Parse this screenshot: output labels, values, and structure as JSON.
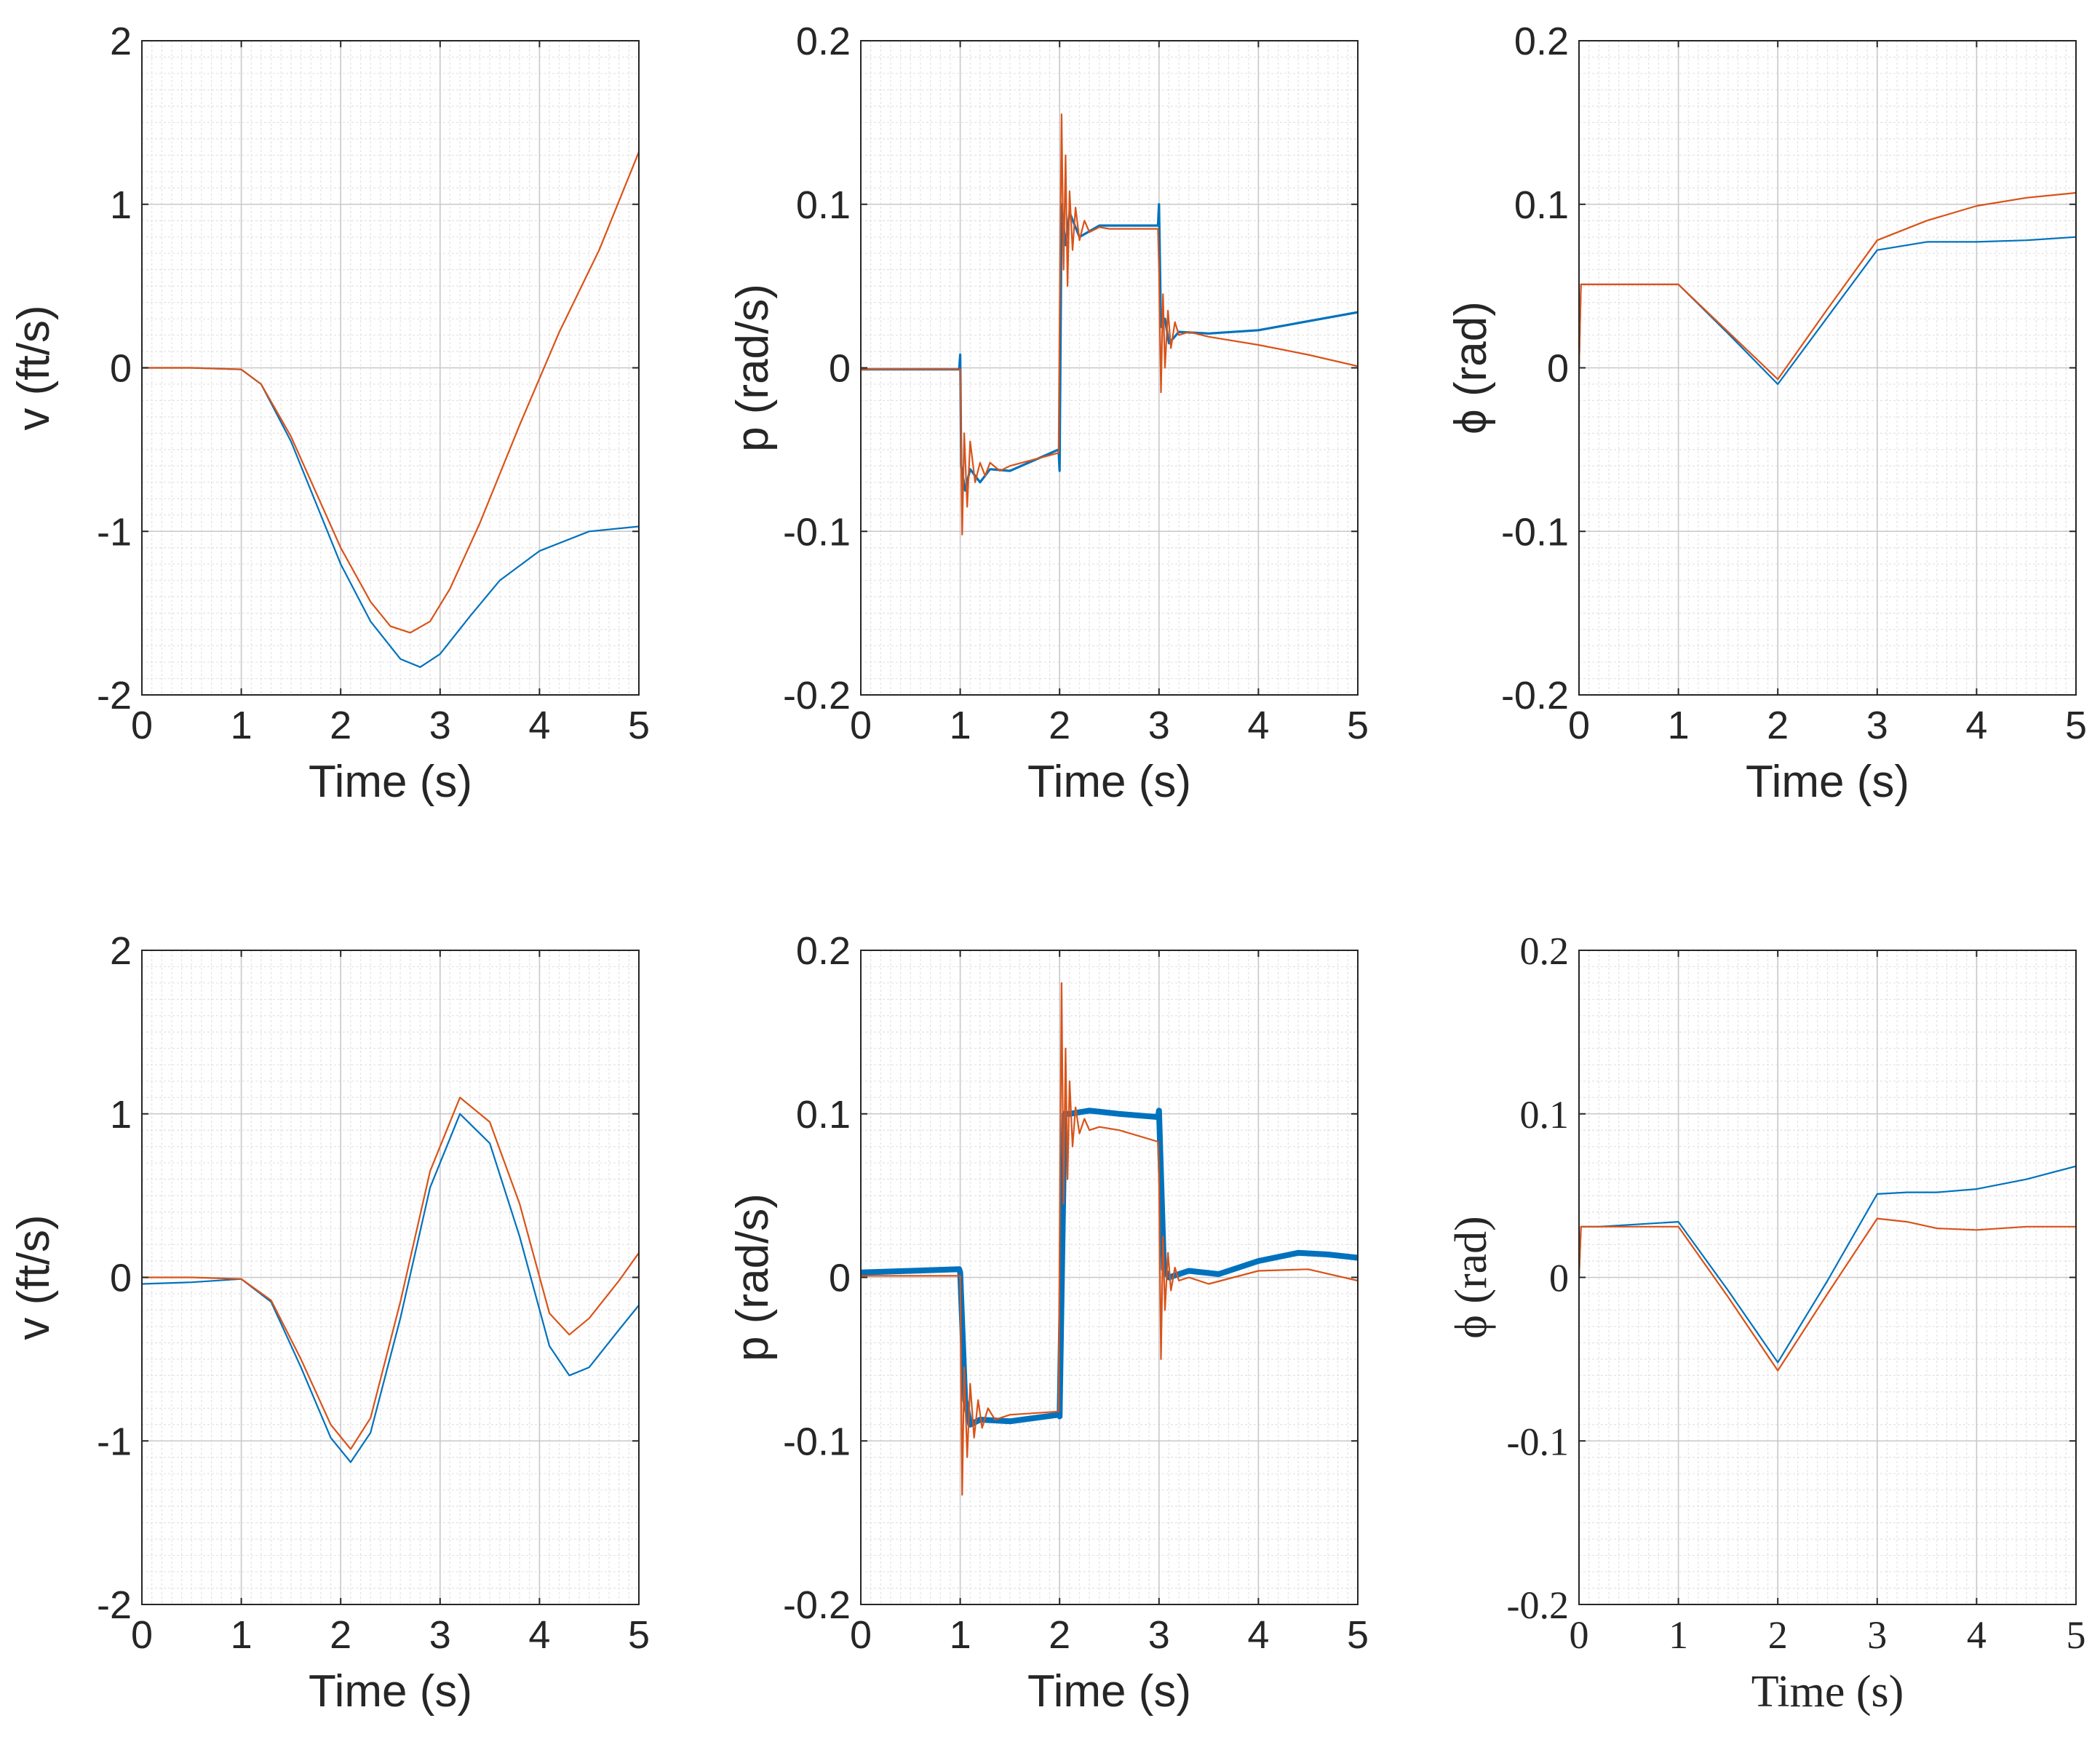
{
  "colors": {
    "series_blue": "#0072BD",
    "series_orange": "#D95319",
    "axis": "#262626",
    "grid_major": "#c8c8c8",
    "grid_minor": "#e3e3e3"
  },
  "chart_data": [
    {
      "id": "v-top",
      "type": "line",
      "font": "sans",
      "xlabel": "Time (s)",
      "ylabel": "v (ft/s)",
      "xlim": [
        0,
        5
      ],
      "ylim": [
        -2,
        2
      ],
      "xticks": [
        0,
        1,
        2,
        3,
        4,
        5
      ],
      "xtick_labels": [
        "0",
        "1",
        "2",
        "3",
        "4",
        "5"
      ],
      "yticks": [
        -2,
        -1,
        0,
        1,
        2
      ],
      "ytick_labels": [
        "-2",
        "-1",
        "0",
        "1",
        "2"
      ],
      "grid": true,
      "minor_grid": true,
      "series": [
        {
          "name": "blue",
          "color": "#0072BD",
          "width": 2.2,
          "x": [
            0,
            0.5,
            1.0,
            1.2,
            1.5,
            2.0,
            2.3,
            2.6,
            2.8,
            3.0,
            3.3,
            3.6,
            4.0,
            4.5,
            5.0
          ],
          "y": [
            0,
            0,
            -0.01,
            -0.1,
            -0.45,
            -1.2,
            -1.55,
            -1.78,
            -1.83,
            -1.75,
            -1.52,
            -1.3,
            -1.12,
            -1.0,
            -0.97
          ]
        },
        {
          "name": "orange",
          "color": "#D95319",
          "width": 2.2,
          "x": [
            0,
            0.5,
            1.0,
            1.2,
            1.5,
            2.0,
            2.3,
            2.5,
            2.7,
            2.9,
            3.1,
            3.4,
            3.8,
            4.2,
            4.6,
            5.0
          ],
          "y": [
            0,
            0,
            -0.01,
            -0.1,
            -0.42,
            -1.1,
            -1.43,
            -1.58,
            -1.62,
            -1.55,
            -1.35,
            -0.95,
            -0.35,
            0.22,
            0.72,
            1.32
          ]
        }
      ]
    },
    {
      "id": "p-top",
      "type": "line",
      "font": "sans",
      "xlabel": "Time (s)",
      "ylabel": "p (rad/s)",
      "xlim": [
        0,
        5
      ],
      "ylim": [
        -0.2,
        0.2
      ],
      "xticks": [
        0,
        1,
        2,
        3,
        4,
        5
      ],
      "xtick_labels": [
        "0",
        "1",
        "2",
        "3",
        "4",
        "5"
      ],
      "yticks": [
        -0.2,
        -0.1,
        0,
        0.1,
        0.2
      ],
      "ytick_labels": [
        "-0.2",
        "-0.1",
        "0",
        "0.1",
        "0.2"
      ],
      "grid": true,
      "minor_grid": true,
      "series": [
        {
          "name": "blue",
          "color": "#0072BD",
          "width": 3.2,
          "x": [
            0,
            0.99,
            1.0,
            1.01,
            1.05,
            1.1,
            1.2,
            1.3,
            1.5,
            1.99,
            2.0,
            2.02,
            2.06,
            2.1,
            2.2,
            2.4,
            2.99,
            3.0,
            3.02,
            3.06,
            3.1,
            3.2,
            3.5,
            4.0,
            5.0
          ],
          "y": [
            -0.001,
            -0.001,
            0.008,
            -0.06,
            -0.075,
            -0.062,
            -0.07,
            -0.062,
            -0.063,
            -0.05,
            -0.063,
            0.1,
            0.075,
            0.095,
            0.08,
            0.087,
            0.087,
            0.1,
            0.025,
            0.03,
            0.015,
            0.022,
            0.021,
            0.023,
            0.034
          ]
        },
        {
          "name": "orange",
          "color": "#D95319",
          "width": 2.2,
          "x": [
            0,
            0.99,
            1.0,
            1.02,
            1.04,
            1.07,
            1.1,
            1.15,
            1.2,
            1.25,
            1.3,
            1.4,
            1.5,
            1.99,
            2.0,
            2.02,
            2.04,
            2.06,
            2.08,
            2.1,
            2.13,
            2.16,
            2.2,
            2.25,
            2.3,
            2.4,
            2.5,
            2.99,
            3.0,
            3.02,
            3.04,
            3.06,
            3.09,
            3.12,
            3.16,
            3.2,
            3.3,
            3.5,
            4.0,
            4.5,
            5.0
          ],
          "y": [
            -0.001,
            -0.001,
            -0.001,
            -0.102,
            -0.04,
            -0.085,
            -0.045,
            -0.07,
            -0.058,
            -0.066,
            -0.058,
            -0.063,
            -0.06,
            -0.052,
            0.03,
            0.155,
            0.06,
            0.13,
            0.05,
            0.108,
            0.072,
            0.098,
            0.078,
            0.09,
            0.083,
            0.086,
            0.085,
            0.085,
            0.06,
            -0.015,
            0.045,
            0.0,
            0.035,
            0.012,
            0.028,
            0.02,
            0.022,
            0.019,
            0.014,
            0.008,
            0.001
          ]
        }
      ]
    },
    {
      "id": "phi-top",
      "type": "line",
      "font": "sans",
      "xlabel": "Time (s)",
      "ylabel": "ϕ (rad)",
      "xlim": [
        0,
        5
      ],
      "ylim": [
        -0.2,
        0.2
      ],
      "xticks": [
        0,
        1,
        2,
        3,
        4,
        5
      ],
      "xtick_labels": [
        "0",
        "1",
        "2",
        "3",
        "4",
        "5"
      ],
      "yticks": [
        -0.2,
        -0.1,
        0,
        0.1,
        0.2
      ],
      "ytick_labels": [
        "-0.2",
        "-0.1",
        "0",
        "0.1",
        "0.2"
      ],
      "grid": true,
      "minor_grid": true,
      "series": [
        {
          "name": "blue",
          "color": "#0072BD",
          "width": 2.2,
          "x": [
            0,
            0.02,
            0.2,
            1.0,
            1.5,
            2.0,
            2.5,
            3.0,
            3.5,
            4.0,
            4.5,
            5.0
          ],
          "y": [
            0,
            0.051,
            0.051,
            0.051,
            0.021,
            -0.01,
            0.031,
            0.072,
            0.077,
            0.077,
            0.078,
            0.08
          ]
        },
        {
          "name": "orange",
          "color": "#D95319",
          "width": 2.2,
          "x": [
            0,
            0.02,
            0.2,
            1.0,
            1.5,
            2.0,
            2.5,
            3.0,
            3.5,
            4.0,
            4.5,
            5.0
          ],
          "y": [
            0,
            0.051,
            0.051,
            0.051,
            0.022,
            -0.007,
            0.036,
            0.078,
            0.09,
            0.099,
            0.104,
            0.107
          ]
        }
      ]
    },
    {
      "id": "v-bottom",
      "type": "line",
      "font": "sans",
      "xlabel": "Time (s)",
      "ylabel": "v (ft/s)",
      "xlim": [
        0,
        5
      ],
      "ylim": [
        -2,
        2
      ],
      "xticks": [
        0,
        1,
        2,
        3,
        4,
        5
      ],
      "xtick_labels": [
        "0",
        "1",
        "2",
        "3",
        "4",
        "5"
      ],
      "yticks": [
        -2,
        -1,
        0,
        1,
        2
      ],
      "ytick_labels": [
        "-2",
        "-1",
        "0",
        "1",
        "2"
      ],
      "grid": true,
      "minor_grid": true,
      "series": [
        {
          "name": "blue",
          "color": "#0072BD",
          "width": 2.2,
          "x": [
            0,
            0.5,
            1.0,
            1.3,
            1.6,
            1.9,
            2.1,
            2.3,
            2.6,
            2.9,
            3.2,
            3.5,
            3.8,
            4.1,
            4.3,
            4.5,
            4.8,
            5.0
          ],
          "y": [
            -0.04,
            -0.03,
            -0.01,
            -0.15,
            -0.55,
            -0.98,
            -1.13,
            -0.95,
            -0.25,
            0.55,
            1.0,
            0.82,
            0.25,
            -0.42,
            -0.6,
            -0.55,
            -0.32,
            -0.17
          ]
        },
        {
          "name": "orange",
          "color": "#D95319",
          "width": 2.2,
          "x": [
            0,
            0.5,
            1.0,
            1.3,
            1.6,
            1.9,
            2.1,
            2.3,
            2.6,
            2.9,
            3.2,
            3.5,
            3.8,
            4.1,
            4.3,
            4.5,
            4.8,
            5.0
          ],
          "y": [
            0,
            0,
            -0.01,
            -0.14,
            -0.5,
            -0.9,
            -1.05,
            -0.86,
            -0.15,
            0.65,
            1.1,
            0.95,
            0.45,
            -0.22,
            -0.35,
            -0.25,
            -0.02,
            0.15
          ]
        }
      ]
    },
    {
      "id": "p-bottom",
      "type": "line",
      "font": "sans",
      "xlabel": "Time (s)",
      "ylabel": "p (rad/s)",
      "xlim": [
        0,
        5
      ],
      "ylim": [
        -0.2,
        0.2
      ],
      "xticks": [
        0,
        1,
        2,
        3,
        4,
        5
      ],
      "xtick_labels": [
        "0",
        "1",
        "2",
        "3",
        "4",
        "5"
      ],
      "yticks": [
        -0.2,
        -0.1,
        0,
        0.1,
        0.2
      ],
      "ytick_labels": [
        "-0.2",
        "-0.1",
        "0",
        "0.1",
        "0.2"
      ],
      "grid": true,
      "minor_grid": true,
      "series": [
        {
          "name": "blue",
          "color": "#0072BD",
          "width": 8,
          "x": [
            0,
            0.99,
            1.0,
            1.05,
            1.1,
            1.2,
            1.5,
            1.99,
            2.0,
            2.05,
            2.1,
            2.3,
            2.6,
            2.99,
            3.0,
            3.05,
            3.1,
            3.3,
            3.6,
            4.0,
            4.4,
            4.7,
            5.0
          ],
          "y": [
            0.003,
            0.005,
            0.003,
            -0.075,
            -0.09,
            -0.087,
            -0.088,
            -0.084,
            -0.085,
            0.1,
            0.1,
            0.102,
            0.1,
            0.098,
            0.102,
            0.005,
            0.0,
            0.004,
            0.002,
            0.01,
            0.015,
            0.014,
            0.012
          ]
        },
        {
          "name": "orange",
          "color": "#D95319",
          "width": 2.2,
          "x": [
            0,
            0.99,
            1.0,
            1.02,
            1.04,
            1.07,
            1.1,
            1.14,
            1.18,
            1.22,
            1.28,
            1.35,
            1.5,
            1.99,
            2.0,
            2.02,
            2.04,
            2.06,
            2.08,
            2.1,
            2.13,
            2.16,
            2.2,
            2.25,
            2.3,
            2.4,
            2.6,
            2.99,
            3.0,
            3.02,
            3.04,
            3.06,
            3.09,
            3.12,
            3.16,
            3.2,
            3.3,
            3.5,
            4.0,
            4.5,
            5.0
          ],
          "y": [
            0.001,
            0.001,
            0.001,
            -0.133,
            -0.055,
            -0.11,
            -0.065,
            -0.098,
            -0.075,
            -0.092,
            -0.08,
            -0.087,
            -0.084,
            -0.082,
            0.02,
            0.18,
            0.045,
            0.14,
            0.06,
            0.12,
            0.08,
            0.104,
            0.088,
            0.097,
            0.09,
            0.092,
            0.09,
            0.083,
            0.06,
            -0.05,
            0.025,
            -0.02,
            0.015,
            -0.008,
            0.006,
            -0.002,
            0.0,
            -0.004,
            0.004,
            0.005,
            -0.002
          ]
        }
      ]
    },
    {
      "id": "phi-bottom",
      "type": "line",
      "font": "serif",
      "xlabel": "Time (s)",
      "ylabel": "ϕ (rad)",
      "xlim": [
        0,
        5
      ],
      "ylim": [
        -0.2,
        0.2
      ],
      "xticks": [
        0,
        1,
        2,
        3,
        4,
        5
      ],
      "xtick_labels": [
        "0",
        "1",
        "2",
        "3",
        "4",
        "5"
      ],
      "yticks": [
        -0.2,
        -0.1,
        0,
        0.1,
        0.2
      ],
      "ytick_labels": [
        "-0.2",
        "-0.1",
        "0",
        "0.1",
        "0.2"
      ],
      "grid": true,
      "minor_grid": true,
      "series": [
        {
          "name": "blue",
          "color": "#0072BD",
          "width": 2.2,
          "x": [
            0,
            0.02,
            0.2,
            1.0,
            1.5,
            2.0,
            2.5,
            3.0,
            3.3,
            3.6,
            4.0,
            4.5,
            5.0
          ],
          "y": [
            0,
            0.031,
            0.031,
            0.034,
            -0.008,
            -0.052,
            -0.002,
            0.051,
            0.052,
            0.052,
            0.054,
            0.06,
            0.068
          ]
        },
        {
          "name": "orange",
          "color": "#D95319",
          "width": 2.2,
          "x": [
            0,
            0.02,
            0.2,
            1.0,
            1.5,
            2.0,
            2.5,
            3.0,
            3.3,
            3.6,
            4.0,
            4.5,
            5.0
          ],
          "y": [
            0,
            0.031,
            0.031,
            0.031,
            -0.012,
            -0.057,
            -0.01,
            0.036,
            0.034,
            0.03,
            0.029,
            0.031,
            0.031
          ]
        }
      ]
    }
  ]
}
